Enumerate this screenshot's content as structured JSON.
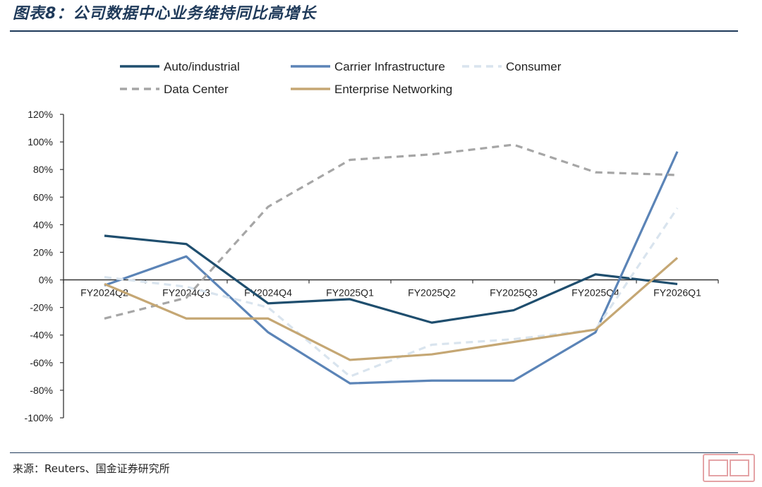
{
  "header": {
    "title": "图表8：公司数据中心业务维持同比高增长"
  },
  "footer": {
    "source": "来源：Reuters、国金证券研究所"
  },
  "chart_data": {
    "type": "line",
    "title": "",
    "xlabel": "",
    "ylabel": "",
    "categories": [
      "FY2024Q2",
      "FY2024Q3",
      "FY2024Q4",
      "FY2025Q1",
      "FY2025Q2",
      "FY2025Q3",
      "FY2025Q4",
      "FY2026Q1"
    ],
    "ylim": [
      -100,
      120
    ],
    "yticks": [
      120,
      100,
      80,
      60,
      40,
      20,
      0,
      -20,
      -40,
      -60,
      -80,
      -100
    ],
    "ytick_labels": [
      "120%",
      "100%",
      "80%",
      "60%",
      "40%",
      "20%",
      "0%",
      "-20%",
      "-40%",
      "-60%",
      "-80%",
      "-100%"
    ],
    "legend_position": "top",
    "grid": false,
    "series": [
      {
        "name": "Auto/industrial",
        "color": "#1f4e6e",
        "dash": "solid",
        "values": [
          32,
          26,
          -17,
          -14,
          -31,
          -22,
          4,
          -3
        ]
      },
      {
        "name": "Carrier Infrastructure",
        "color": "#5b84b7",
        "dash": "solid",
        "values": [
          -4,
          17,
          -38,
          -75,
          -73,
          -73,
          -38,
          93
        ]
      },
      {
        "name": "Consumer",
        "color": "#d9e4ee",
        "dash": "dashed",
        "values": [
          2,
          -5,
          -20,
          -70,
          -47,
          -43,
          -36,
          52
        ]
      },
      {
        "name": "Data Center",
        "color": "#a6a6a6",
        "dash": "dashed",
        "values": [
          -28,
          -13,
          53,
          87,
          91,
          98,
          78,
          76
        ]
      },
      {
        "name": "Enterprise Networking",
        "color": "#c5a774",
        "dash": "solid",
        "values": [
          -3,
          -28,
          -28,
          -58,
          -54,
          -45,
          -36,
          16
        ]
      }
    ]
  }
}
